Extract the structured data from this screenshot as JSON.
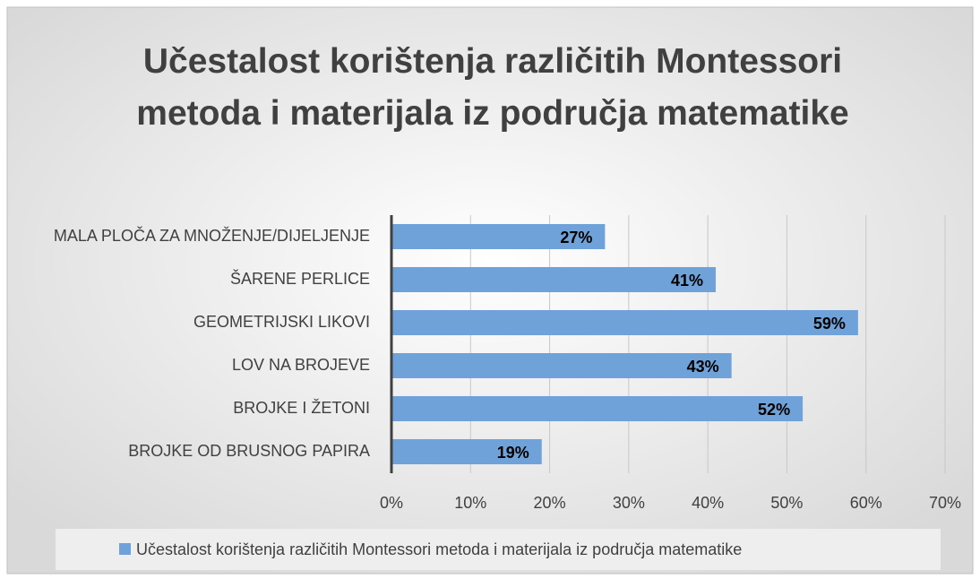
{
  "chart_data": {
    "type": "bar",
    "orientation": "horizontal",
    "title": "Učestalost korištenja različitih Montessori metoda i materijala iz područja matematike",
    "categories": [
      "MALA PLOČA ZA MNOŽENJE/DIJELJENJE",
      "ŠARENE PERLICE",
      "GEOMETRIJSKI LIKOVI",
      "LOV NA BROJEVE",
      "BROJKE I ŽETONI",
      "BROJKE OD BRUSNOG PAPIRA"
    ],
    "series": [
      {
        "name": "Učestalost korištenja različitih Montessori metoda i materijala iz područja matematike",
        "color": "#6fa2d8",
        "values": [
          27,
          41,
          59,
          43,
          52,
          19
        ],
        "value_labels": [
          "27%",
          "41%",
          "59%",
          "43%",
          "52%",
          "19%"
        ]
      }
    ],
    "xlim": [
      0,
      70
    ],
    "xticks": [
      {
        "value": 0,
        "label": "0%"
      },
      {
        "value": 10,
        "label": "10%"
      },
      {
        "value": 20,
        "label": "20%"
      },
      {
        "value": 30,
        "label": "30%"
      },
      {
        "value": 40,
        "label": "40%"
      },
      {
        "value": 50,
        "label": "50%"
      },
      {
        "value": 60,
        "label": "60%"
      },
      {
        "value": 70,
        "label": "70%"
      }
    ],
    "grid": true,
    "legend": "bottom"
  }
}
